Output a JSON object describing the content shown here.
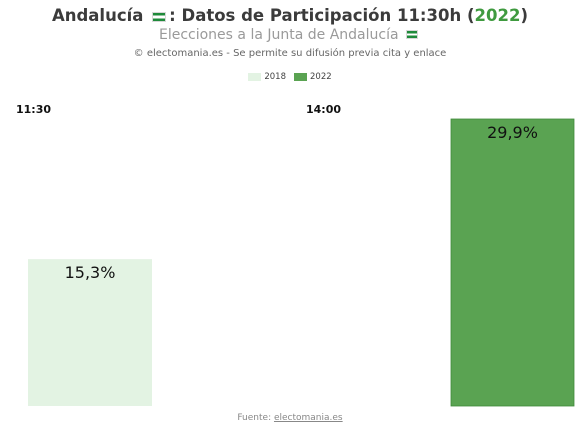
{
  "header": {
    "title_prefix": "Andalucía",
    "title_main": ": Datos de Participación 11:30h (",
    "title_year": "2022",
    "title_suffix": ")",
    "subtitle": "Elecciones a la Junta de Andalucía",
    "credit": "© electomania.es - Se permite su difusión previa cita y enlace"
  },
  "footer": {
    "prefix": "Fuente: ",
    "link": "electomania.es"
  },
  "colors": {
    "2018": "#e3f3e3",
    "2022": "#5aa352"
  },
  "chart_data": {
    "type": "bar",
    "facets": [
      "11:30",
      "14:00"
    ],
    "series": [
      {
        "name": "2018",
        "values": [
          15.3,
          null
        ]
      },
      {
        "name": "2022",
        "values": [
          null,
          29.9
        ]
      }
    ],
    "data_labels": [
      "15,3%",
      "29,9%"
    ],
    "legend": {
      "position": "top",
      "entries": [
        "2018",
        "2022"
      ]
    },
    "ylim": [
      0,
      30
    ],
    "grid": false
  }
}
